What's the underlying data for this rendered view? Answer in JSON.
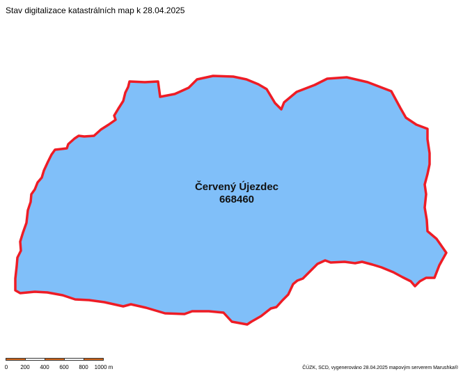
{
  "map": {
    "title": "Stav digitalizace katastrálních map k 28.04.2025",
    "territory": {
      "name": "Červený Újezdec",
      "code": "668460",
      "fill_color": "#80bff9",
      "border_color": "#ee1c25"
    },
    "scale_bar": {
      "labels": [
        "0",
        "200",
        "400",
        "600",
        "800",
        "1000 m"
      ],
      "colors": [
        "#d2691e",
        "#ffffff"
      ]
    },
    "attribution": "ČÚZK, SCD, vygenerováno 28.04.2025 mapovým serverem Marushka®"
  }
}
